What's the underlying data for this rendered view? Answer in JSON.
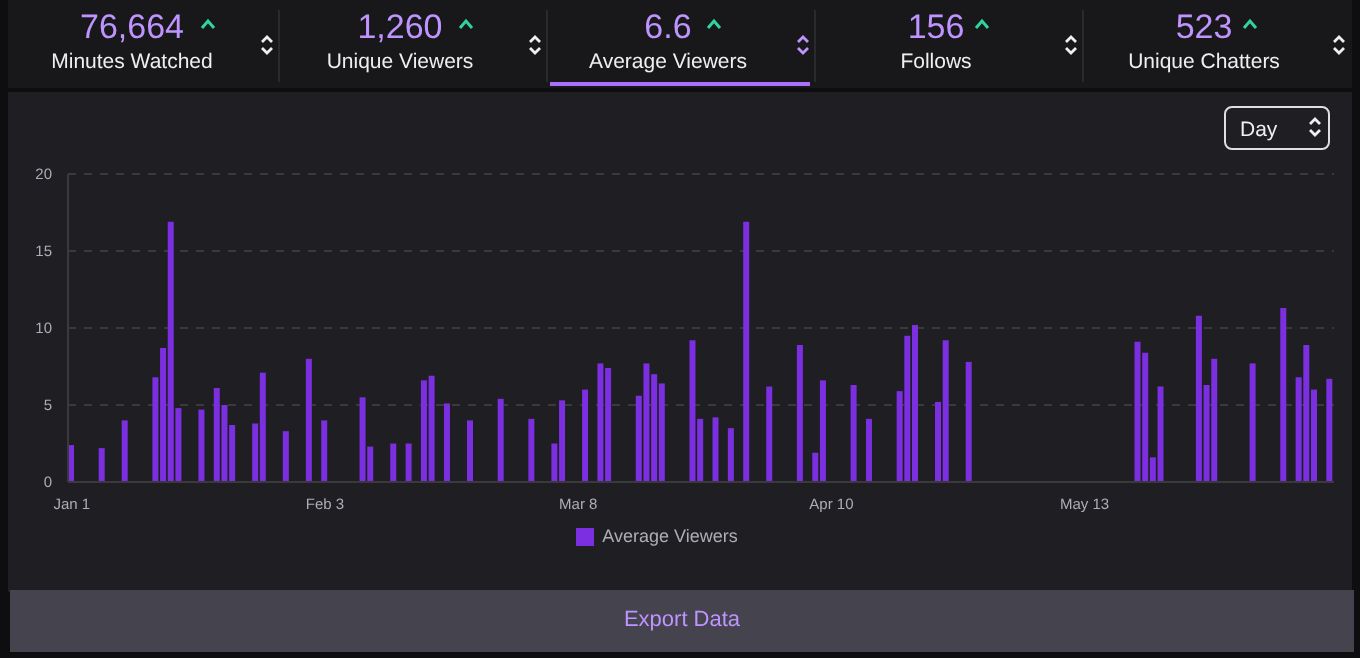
{
  "chart_data": {
    "type": "bar",
    "categories": [
      "Jan 1",
      null,
      null,
      null,
      null,
      null,
      null,
      null,
      null,
      null,
      null,
      null,
      null,
      null,
      null,
      null,
      null,
      null,
      null,
      null,
      null,
      null,
      null,
      null,
      null,
      null,
      null,
      null,
      null,
      null,
      null,
      null,
      null,
      "Feb 3",
      null,
      null,
      null,
      null,
      null,
      null,
      null,
      null,
      null,
      null,
      null,
      null,
      null,
      null,
      null,
      null,
      null,
      null,
      null,
      null,
      null,
      null,
      null,
      null,
      null,
      null,
      null,
      null,
      null,
      null,
      null,
      null,
      "Mar 8",
      null,
      null,
      null,
      null,
      null,
      null,
      null,
      null,
      null,
      null,
      null,
      null,
      null,
      null,
      null,
      null,
      null,
      null,
      null,
      null,
      null,
      null,
      null,
      null,
      null,
      null,
      null,
      null,
      null,
      null,
      null,
      null,
      "Apr 10",
      null,
      null,
      null,
      null,
      null,
      null,
      null,
      null,
      null,
      null,
      null,
      null,
      null,
      null,
      null,
      null,
      null,
      null,
      null,
      null,
      null,
      null,
      null,
      null,
      null,
      null,
      null,
      null,
      null,
      null,
      null,
      null,
      "May 13",
      null,
      null,
      null,
      null,
      null,
      null,
      null,
      null,
      null,
      null,
      null,
      null,
      null,
      null,
      null,
      null,
      null,
      null,
      null,
      null,
      null,
      null,
      null,
      null,
      null,
      null,
      null,
      null,
      null,
      null,
      null,
      null
    ],
    "series": [
      {
        "name": "Average Viewers",
        "color": "#7b2fe0",
        "values": [
          2.4,
          null,
          null,
          null,
          2.2,
          null,
          null,
          4.0,
          null,
          null,
          null,
          6.8,
          8.7,
          16.9,
          4.8,
          null,
          null,
          4.7,
          null,
          6.1,
          5.0,
          3.7,
          null,
          null,
          3.8,
          7.1,
          null,
          null,
          3.3,
          null,
          null,
          8.0,
          null,
          4.0,
          null,
          null,
          null,
          null,
          5.5,
          2.3,
          null,
          null,
          2.5,
          null,
          2.5,
          null,
          6.6,
          6.9,
          null,
          5.1,
          null,
          null,
          4.0,
          null,
          null,
          null,
          5.4,
          null,
          null,
          null,
          4.1,
          null,
          null,
          2.5,
          5.3,
          null,
          null,
          6.0,
          null,
          7.7,
          7.4,
          null,
          null,
          null,
          5.6,
          7.7,
          7.0,
          6.4,
          null,
          null,
          null,
          9.2,
          4.1,
          null,
          4.2,
          null,
          3.5,
          null,
          16.9,
          null,
          null,
          6.2,
          null,
          null,
          null,
          8.9,
          null,
          1.9,
          6.6,
          null,
          null,
          null,
          6.3,
          null,
          4.1,
          null,
          null,
          null,
          5.9,
          9.5,
          10.2,
          null,
          null,
          5.2,
          9.2,
          null,
          null,
          7.8,
          null,
          null,
          null,
          null,
          null,
          null,
          null,
          null,
          null,
          null,
          null,
          null,
          null,
          null,
          null,
          null,
          null,
          null,
          null,
          null,
          null,
          9.1,
          8.4,
          1.6,
          6.2,
          null,
          null,
          null,
          null,
          10.8,
          6.3,
          8.0,
          null,
          null,
          null,
          null,
          7.7,
          null,
          null,
          null,
          11.3,
          null,
          6.8,
          8.9,
          6.0,
          null,
          6.7
        ]
      }
    ],
    "ylim": [
      0,
      20
    ],
    "yticks": [
      0,
      5,
      10,
      15,
      20
    ],
    "grid": "y",
    "legend": "bottom",
    "annotations": [
      "76,664",
      "Minutes Watched",
      "1,260",
      "Unique Viewers",
      "6.6",
      "Average Viewers",
      "156",
      "Follows",
      "523",
      "Unique Chatters",
      "Day",
      "Export Data"
    ]
  }
}
